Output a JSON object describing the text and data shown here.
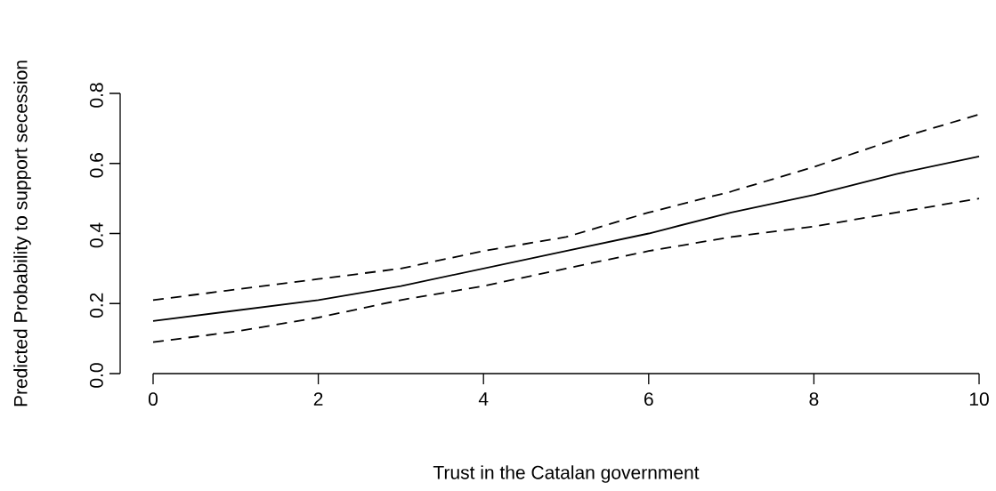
{
  "chart_data": {
    "type": "line",
    "xlabel": "Trust in the Catalan government",
    "ylabel": "Predicted Probability to support secession",
    "x": [
      0,
      1,
      2,
      3,
      4,
      5,
      6,
      7,
      8,
      9,
      10
    ],
    "series": [
      {
        "color": "#000000",
        "line_style": "solid",
        "values": [
          0.15,
          0.18,
          0.21,
          0.25,
          0.3,
          0.35,
          0.4,
          0.46,
          0.51,
          0.57,
          0.62
        ]
      },
      {
        "color": "#000000",
        "line_style": "dashed",
        "values": [
          0.21,
          0.24,
          0.27,
          0.3,
          0.35,
          0.39,
          0.46,
          0.52,
          0.59,
          0.67,
          0.74
        ]
      },
      {
        "color": "#000000",
        "line_style": "dashed",
        "values": [
          0.09,
          0.12,
          0.16,
          0.21,
          0.25,
          0.3,
          0.35,
          0.39,
          0.42,
          0.46,
          0.5
        ]
      }
    ],
    "xlim": [
      0,
      10
    ],
    "ylim": [
      0,
      0.8
    ],
    "xticks": [
      0,
      2,
      4,
      6,
      8,
      10
    ],
    "yticks": [
      "0.0",
      0.2,
      0.4,
      0.6,
      0.8
    ],
    "grid": false
  }
}
